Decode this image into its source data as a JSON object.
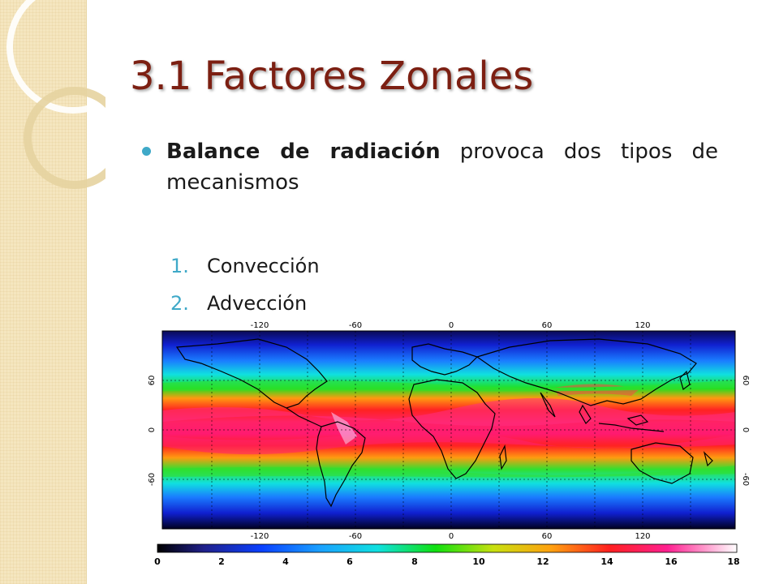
{
  "slide": {
    "title": "3.1  Factores Zonales",
    "bullet": {
      "bold": "Balance de radiación",
      "rest": " provoca dos tipos de mecanismos"
    },
    "numbered": [
      {
        "num": "1.",
        "label": "Convección"
      },
      {
        "num": "2.",
        "label": "Advección"
      }
    ]
  },
  "figure": {
    "lon_ticks": [
      "-120",
      "-60",
      "0",
      "60",
      "120"
    ],
    "lat_ticks": [
      "60",
      "0",
      "-60"
    ],
    "colorbar_ticks": [
      "0",
      "2",
      "4",
      "6",
      "8",
      "10",
      "12",
      "14",
      "16",
      "18"
    ]
  },
  "colors": {
    "title": "#7c1f12",
    "bullet_accent": "#3fa9c8",
    "background_strip": "#f5e6bf"
  }
}
